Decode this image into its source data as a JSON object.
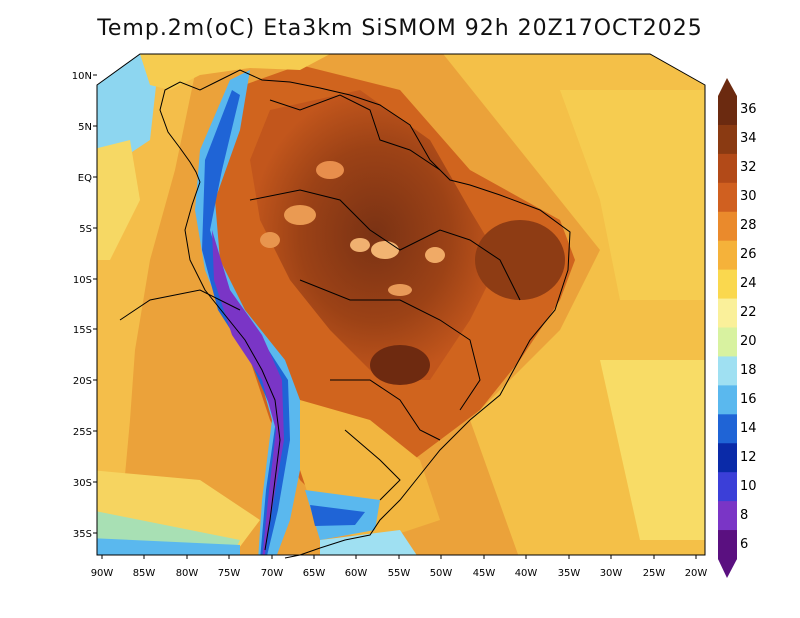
{
  "title": "Temp.2m(oC) Eta3km SiSMOM 92h 20Z17OCT2025",
  "lat_labels": [
    "10N",
    "5N",
    "EQ",
    "5S",
    "10S",
    "15S",
    "20S",
    "25S",
    "30S",
    "35S"
  ],
  "lon_labels": [
    "90W",
    "85W",
    "80W",
    "75W",
    "70W",
    "65W",
    "60W",
    "55W",
    "50W",
    "45W",
    "40W",
    "35W",
    "30W",
    "25W",
    "20W"
  ],
  "colorbar": {
    "labels": [
      "36",
      "34",
      "32",
      "30",
      "28",
      "26",
      "24",
      "22",
      "20",
      "18",
      "16",
      "14",
      "12",
      "10",
      "8",
      "6"
    ],
    "colors": [
      "#6b2a10",
      "#8a3a12",
      "#b24a18",
      "#d06020",
      "#ea8a2c",
      "#f5b23a",
      "#fad84e",
      "#faf09a",
      "#d8f2a0",
      "#9fe0f2",
      "#5ab8ee",
      "#1f64d6",
      "#0a2aa8",
      "#3b3fd8",
      "#7a35c6",
      "#5a1080"
    ]
  }
}
